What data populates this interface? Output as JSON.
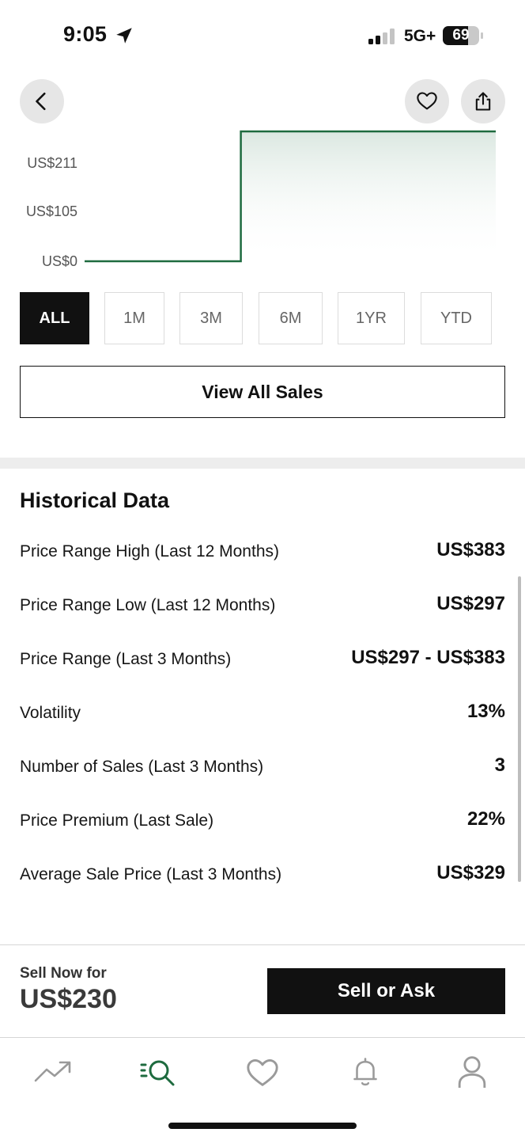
{
  "status_bar": {
    "time": "9:05",
    "network": "5G+",
    "battery": "69"
  },
  "chart_data": {
    "type": "line",
    "yticks": [
      "US$211",
      "US$105",
      "US$0"
    ],
    "series": [
      {
        "points": [
          [
            0,
            0
          ],
          [
            0.38,
            0
          ],
          [
            0.38,
            300
          ],
          [
            1,
            300
          ]
        ]
      }
    ],
    "ylim": [
      0,
      300
    ],
    "line_color": "#1e6b3f"
  },
  "range_buttons": [
    "ALL",
    "1M",
    "3M",
    "6M",
    "1YR",
    "YTD"
  ],
  "active_range": "ALL",
  "view_all_label": "View All Sales",
  "historical": {
    "title": "Historical Data",
    "rows": [
      {
        "label": "Price Range High (Last 12 Months)",
        "value": "US$383"
      },
      {
        "label": "Price Range Low (Last 12 Months)",
        "value": "US$297"
      },
      {
        "label": "Price Range (Last 3 Months)",
        "value": "US$297 - US$383"
      },
      {
        "label": "Volatility",
        "value": "13%"
      },
      {
        "label": "Number of Sales (Last 3 Months)",
        "value": "3"
      },
      {
        "label": "Price Premium (Last Sale)",
        "value": "22%"
      },
      {
        "label": "Average Sale Price (Last 3 Months)",
        "value": "US$329"
      }
    ]
  },
  "sell_bar": {
    "label": "Sell Now for",
    "price": "US$230",
    "button": "Sell or Ask"
  },
  "tab_bar": {
    "icons": [
      "trending-icon",
      "search-icon",
      "heart-icon",
      "bell-icon",
      "profile-icon"
    ],
    "active": "search-icon",
    "active_color": "#1e6b3f"
  }
}
